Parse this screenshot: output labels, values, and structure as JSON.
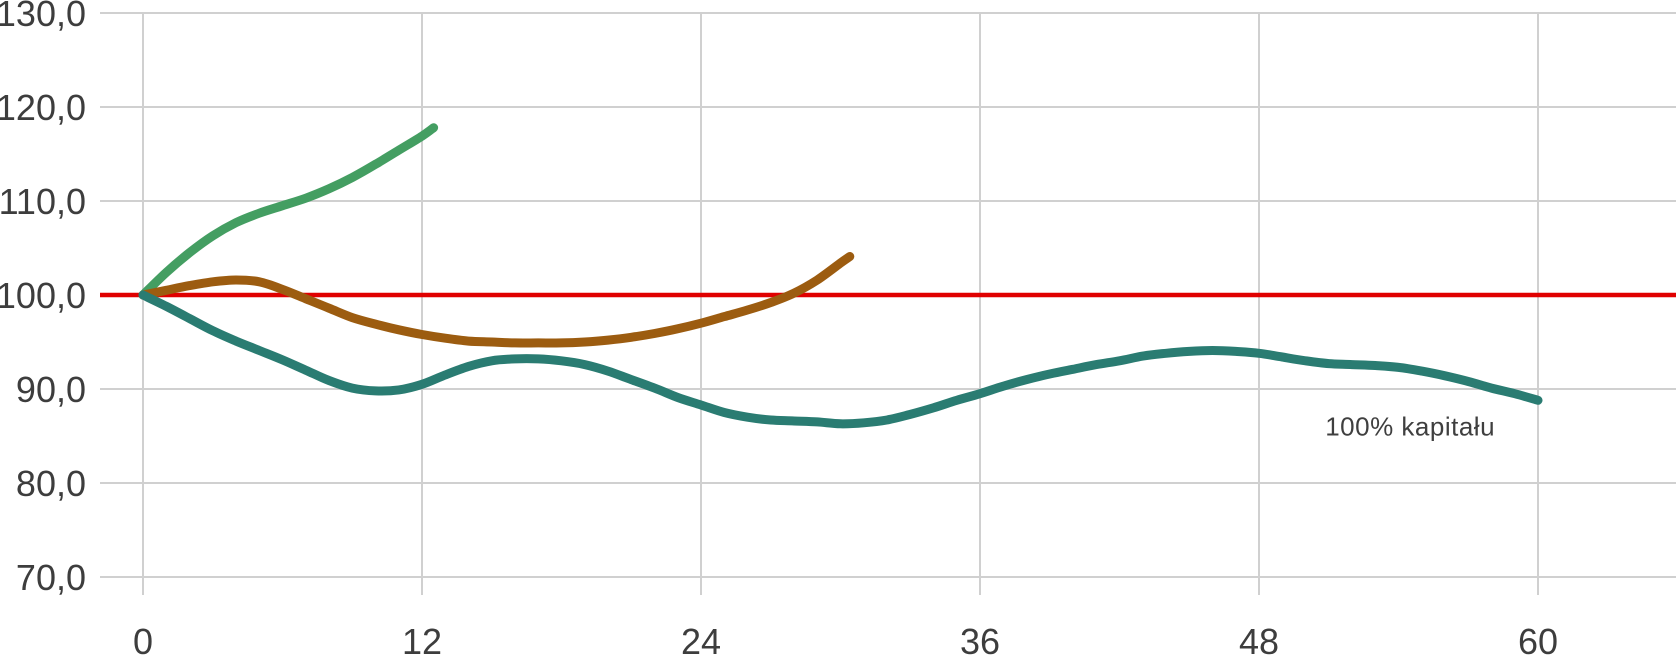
{
  "chart_data": {
    "type": "line",
    "title": "",
    "xlabel": "",
    "ylabel": "",
    "xlim": [
      0,
      66
    ],
    "ylim": [
      70,
      130
    ],
    "grid": true,
    "grid_color": "#d0d0d0",
    "background_color": "#ffffff",
    "axis_text_color": "#3d3d3d",
    "legend": "none",
    "x_ticks": [
      {
        "value": 0,
        "label": "0"
      },
      {
        "value": 12,
        "label": "12"
      },
      {
        "value": 24,
        "label": "24"
      },
      {
        "value": 36,
        "label": "36"
      },
      {
        "value": 48,
        "label": "48"
      },
      {
        "value": 60,
        "label": "60"
      }
    ],
    "y_ticks": [
      {
        "value": 130,
        "label": "130,0"
      },
      {
        "value": 120,
        "label": "120,0"
      },
      {
        "value": 110,
        "label": "110,0"
      },
      {
        "value": 100,
        "label": "100,0"
      },
      {
        "value": 90,
        "label": "90,0"
      },
      {
        "value": 80,
        "label": "80,0"
      },
      {
        "value": 70,
        "label": "70,0"
      }
    ],
    "reference_line": {
      "value": 100.0,
      "color": "#e00000"
    },
    "annotations": [
      {
        "text": "100% kapitału",
        "x": 54.5,
        "y": 86.0,
        "color": "#3f3f3f"
      }
    ],
    "series": [
      {
        "id": "green",
        "color": "#449e62",
        "points": [
          [
            0,
            100
          ],
          [
            1,
            102.4
          ],
          [
            2,
            104.5
          ],
          [
            3,
            106.3
          ],
          [
            4,
            107.7
          ],
          [
            5,
            108.7
          ],
          [
            6,
            109.5
          ],
          [
            7,
            110.3
          ],
          [
            8,
            111.3
          ],
          [
            9,
            112.5
          ],
          [
            10,
            113.9
          ],
          [
            11,
            115.4
          ],
          [
            12,
            116.9
          ],
          [
            12.5,
            117.8
          ]
        ]
      },
      {
        "id": "brown",
        "color": "#9c5c10",
        "points": [
          [
            0,
            100
          ],
          [
            1,
            100.5
          ],
          [
            2,
            101
          ],
          [
            3,
            101.4
          ],
          [
            4,
            101.6
          ],
          [
            5,
            101.4
          ],
          [
            6,
            100.6
          ],
          [
            7,
            99.6
          ],
          [
            8,
            98.6
          ],
          [
            9,
            97.6
          ],
          [
            10,
            96.9
          ],
          [
            11,
            96.3
          ],
          [
            12,
            95.8
          ],
          [
            13,
            95.4
          ],
          [
            14,
            95.1
          ],
          [
            15,
            95
          ],
          [
            16,
            94.9
          ],
          [
            17,
            94.9
          ],
          [
            18,
            94.9
          ],
          [
            19,
            95
          ],
          [
            20,
            95.2
          ],
          [
            21,
            95.5
          ],
          [
            22,
            95.9
          ],
          [
            23,
            96.4
          ],
          [
            24,
            97
          ],
          [
            25,
            97.7
          ],
          [
            26,
            98.4
          ],
          [
            27,
            99.2
          ],
          [
            28,
            100.2
          ],
          [
            29,
            101.6
          ],
          [
            30,
            103.4
          ],
          [
            30.4,
            104.1
          ]
        ]
      },
      {
        "id": "teal",
        "color": "#2a7c72",
        "points": [
          [
            0,
            100
          ],
          [
            1,
            98.8
          ],
          [
            2,
            97.5
          ],
          [
            3,
            96.2
          ],
          [
            4,
            95.1
          ],
          [
            5,
            94.1
          ],
          [
            6,
            93.1
          ],
          [
            7,
            92
          ],
          [
            8,
            90.9
          ],
          [
            9,
            90.1
          ],
          [
            10,
            89.8
          ],
          [
            11,
            89.9
          ],
          [
            12,
            90.5
          ],
          [
            13,
            91.5
          ],
          [
            14,
            92.4
          ],
          [
            15,
            93
          ],
          [
            16,
            93.2
          ],
          [
            17,
            93.2
          ],
          [
            18,
            93
          ],
          [
            19,
            92.6
          ],
          [
            20,
            91.9
          ],
          [
            21,
            91
          ],
          [
            22,
            90.1
          ],
          [
            23,
            89.1
          ],
          [
            24,
            88.3
          ],
          [
            25,
            87.5
          ],
          [
            26,
            87
          ],
          [
            27,
            86.7
          ],
          [
            28,
            86.6
          ],
          [
            29,
            86.5
          ],
          [
            30,
            86.3
          ],
          [
            31,
            86.4
          ],
          [
            32,
            86.7
          ],
          [
            33,
            87.3
          ],
          [
            34,
            88
          ],
          [
            35,
            88.8
          ],
          [
            36,
            89.5
          ],
          [
            37,
            90.3
          ],
          [
            38,
            91
          ],
          [
            39,
            91.6
          ],
          [
            40,
            92.1
          ],
          [
            41,
            92.6
          ],
          [
            42,
            93
          ],
          [
            43,
            93.5
          ],
          [
            44,
            93.8
          ],
          [
            45,
            94
          ],
          [
            46,
            94.1
          ],
          [
            47,
            94
          ],
          [
            48,
            93.8
          ],
          [
            49,
            93.4
          ],
          [
            50,
            93
          ],
          [
            51,
            92.7
          ],
          [
            52,
            92.6
          ],
          [
            53,
            92.5
          ],
          [
            54,
            92.3
          ],
          [
            55,
            91.9
          ],
          [
            56,
            91.4
          ],
          [
            57,
            90.8
          ],
          [
            58,
            90.1
          ],
          [
            59,
            89.5
          ],
          [
            60,
            88.8
          ]
        ]
      }
    ]
  }
}
